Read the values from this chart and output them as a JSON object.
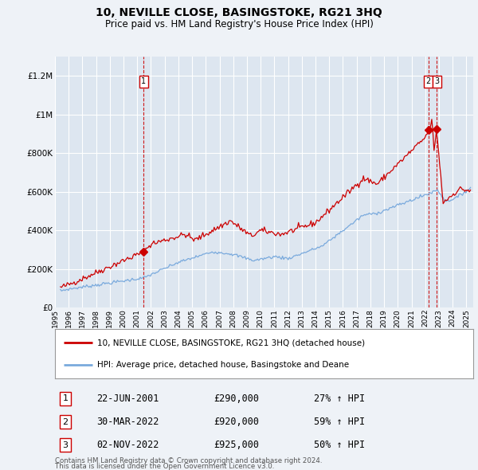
{
  "title": "10, NEVILLE CLOSE, BASINGSTOKE, RG21 3HQ",
  "subtitle": "Price paid vs. HM Land Registry's House Price Index (HPI)",
  "background_color": "#eef2f7",
  "plot_bg_color": "#dde6f0",
  "grid_color": "#ffffff",
  "red_line_color": "#cc0000",
  "blue_line_color": "#7aaadd",
  "transactions": [
    {
      "num": 1,
      "date": "22-JUN-2001",
      "price": 290000,
      "hpi_pct": "27% ↑ HPI",
      "year": 2001.47
    },
    {
      "num": 2,
      "date": "30-MAR-2022",
      "price": 920000,
      "hpi_pct": "59% ↑ HPI",
      "year": 2022.23
    },
    {
      "num": 3,
      "date": "02-NOV-2022",
      "price": 925000,
      "hpi_pct": "50% ↑ HPI",
      "year": 2022.83
    }
  ],
  "legend_label_red": "10, NEVILLE CLOSE, BASINGSTOKE, RG21 3HQ (detached house)",
  "legend_label_blue": "HPI: Average price, detached house, Basingstoke and Deane",
  "footer_line1": "Contains HM Land Registry data © Crown copyright and database right 2024.",
  "footer_line2": "This data is licensed under the Open Government Licence v3.0.",
  "ylim": [
    0,
    1300000
  ],
  "yticks": [
    0,
    200000,
    400000,
    600000,
    800000,
    1000000,
    1200000
  ],
  "xlim_start": 1995.3,
  "xlim_end": 2025.5
}
